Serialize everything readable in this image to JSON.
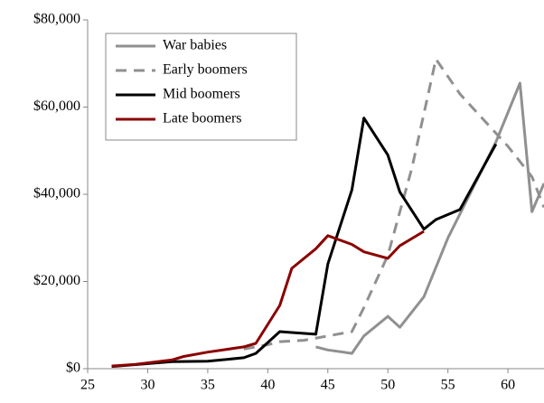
{
  "chart_data": {
    "type": "line",
    "xlim": [
      25,
      63
    ],
    "xticks": [
      25,
      30,
      35,
      40,
      45,
      50,
      55,
      60
    ],
    "ylim": [
      0,
      80000
    ],
    "yticks": [
      {
        "value": 0,
        "label": "$0"
      },
      {
        "value": 20000,
        "label": "$20,000"
      },
      {
        "value": 40000,
        "label": "$40,000"
      },
      {
        "value": 60000,
        "label": "$60,000"
      },
      {
        "value": 80000,
        "label": "$80,000"
      }
    ],
    "legend": "top-left",
    "series": [
      {
        "name": "War babies",
        "color": "#909090",
        "linestyle": "solid",
        "x": [
          44,
          45,
          47,
          48,
          50,
          51,
          53,
          55,
          57,
          59,
          61,
          62,
          63
        ],
        "values": [
          5000,
          4300,
          3500,
          7500,
          12000,
          9500,
          16500,
          30000,
          41000,
          52000,
          65500,
          36000,
          42500
        ]
      },
      {
        "name": "Early boomers",
        "color": "#909090",
        "linestyle": "dashed",
        "x": [
          38,
          40,
          41,
          43,
          45,
          47,
          48,
          50,
          52,
          54,
          56,
          58,
          60,
          62,
          63
        ],
        "values": [
          4500,
          5500,
          6200,
          6500,
          7500,
          8500,
          14000,
          26000,
          46000,
          71000,
          63000,
          57000,
          51000,
          44000,
          37000
        ]
      },
      {
        "name": "Mid boomers",
        "color": "#000000",
        "linestyle": "solid",
        "x": [
          27,
          32,
          35,
          38,
          39,
          40,
          41,
          42,
          44,
          45,
          47,
          48,
          50,
          51,
          53,
          54,
          56,
          59
        ],
        "values": [
          500,
          1600,
          1700,
          2500,
          3500,
          6000,
          8500,
          8300,
          7900,
          24000,
          41000,
          57500,
          49000,
          40500,
          32000,
          34200,
          36500,
          51500
        ]
      },
      {
        "name": "Late boomers",
        "color": "#8b0000",
        "linestyle": "solid",
        "x": [
          27,
          29,
          32,
          33,
          35,
          38,
          39,
          41,
          42,
          44,
          45,
          47,
          48,
          50,
          51,
          53
        ],
        "values": [
          600,
          1000,
          2000,
          2800,
          3800,
          5000,
          5800,
          14500,
          23000,
          27500,
          30500,
          28500,
          26800,
          25300,
          28200,
          31500
        ]
      }
    ]
  }
}
